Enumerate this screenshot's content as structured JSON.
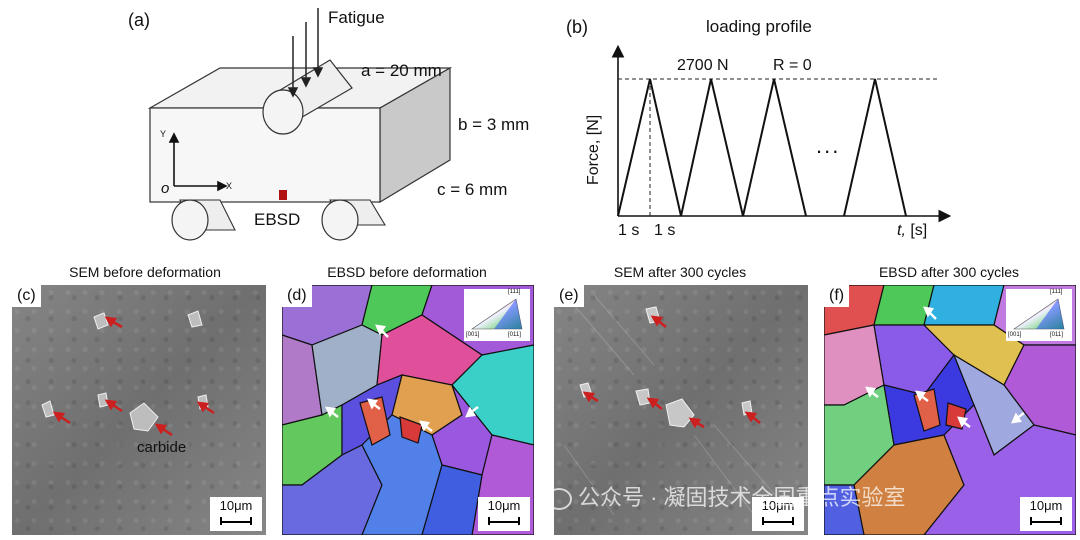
{
  "panel_a": {
    "label": "(a)",
    "force": "Fatigue",
    "dim_a": "a = 20 mm",
    "dim_b": "b = 3 mm",
    "dim_c": "c = 6 mm",
    "axis_y": "Y",
    "axis_x": "X",
    "origin": "o",
    "ebsd": "EBSD"
  },
  "panel_b": {
    "label": "(b)",
    "title": "loading profile",
    "peak": "2700 N",
    "ratio": "R = 0",
    "ylabel": "Force, [N]",
    "xlabel_t": "t,",
    "xlabel_unit": " [s]",
    "tick1": "1 s",
    "tick2": "1 s",
    "dots": "..."
  },
  "panel_c": {
    "label": "(c)",
    "caption": "SEM before deformation",
    "annotation": "carbide",
    "scale": "10μm"
  },
  "panel_d": {
    "label": "(d)",
    "caption": "EBSD before deformation",
    "scale": "10μm",
    "ipf": {
      "top": "[111]",
      "left": "[001]",
      "right": "[011]"
    }
  },
  "panel_e": {
    "label": "(e)",
    "caption": "SEM after 300 cycles",
    "scale": "10μm"
  },
  "panel_f": {
    "label": "(f)",
    "caption": "EBSD after 300 cycles",
    "scale": "10μm",
    "ipf": {
      "top": "[111]",
      "left": "[001]",
      "right": "[011]"
    }
  },
  "watermark": "公众号 · 凝固技术全国重点实验室",
  "colors": {
    "arrow_red": "#cc1f1f",
    "ebsd_marker": "#b01010"
  }
}
